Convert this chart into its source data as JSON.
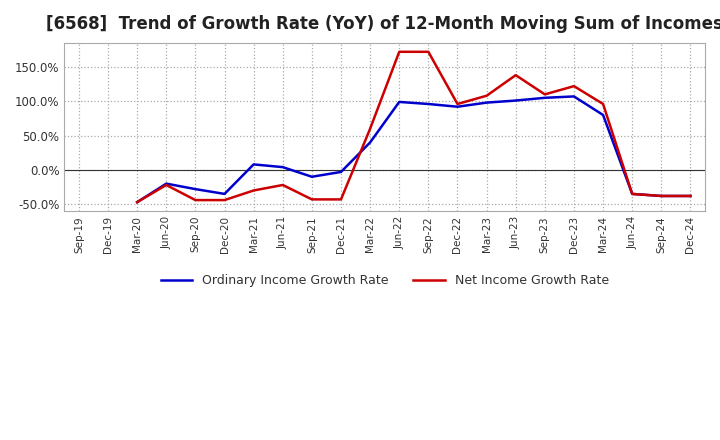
{
  "title": "[6568]  Trend of Growth Rate (YoY) of 12-Month Moving Sum of Incomes",
  "title_fontsize": 12,
  "background_color": "#ffffff",
  "grid_color": "#aaaaaa",
  "legend_labels": [
    "Ordinary Income Growth Rate",
    "Net Income Growth Rate"
  ],
  "ordinary_color": "#0000cc",
  "net_color": "#cc0000",
  "x_labels": [
    "Sep-19",
    "Dec-19",
    "Mar-20",
    "Jun-20",
    "Sep-20",
    "Dec-20",
    "Mar-21",
    "Jun-21",
    "Sep-21",
    "Dec-21",
    "Mar-22",
    "Jun-22",
    "Sep-22",
    "Dec-22",
    "Mar-23",
    "Jun-23",
    "Sep-23",
    "Dec-23",
    "Mar-24",
    "Jun-24",
    "Sep-24",
    "Dec-24"
  ],
  "ordinary_income_growth": [
    null,
    null,
    -0.47,
    -0.2,
    -0.28,
    -0.35,
    0.08,
    0.04,
    -0.1,
    -0.03,
    0.4,
    0.99,
    0.96,
    0.92,
    0.98,
    1.01,
    1.05,
    1.07,
    0.8,
    -0.35,
    -0.38,
    -0.38
  ],
  "net_income_growth": [
    null,
    null,
    -0.47,
    -0.22,
    -0.44,
    -0.44,
    -0.3,
    -0.22,
    -0.43,
    -0.43,
    0.6,
    1.72,
    1.72,
    0.96,
    1.08,
    1.38,
    1.1,
    1.22,
    0.96,
    -0.35,
    -0.38,
    -0.38
  ],
  "yticks": [
    -0.5,
    0.0,
    0.5,
    1.0,
    1.5
  ],
  "ylim_min": -0.6,
  "ylim_max": 1.85
}
